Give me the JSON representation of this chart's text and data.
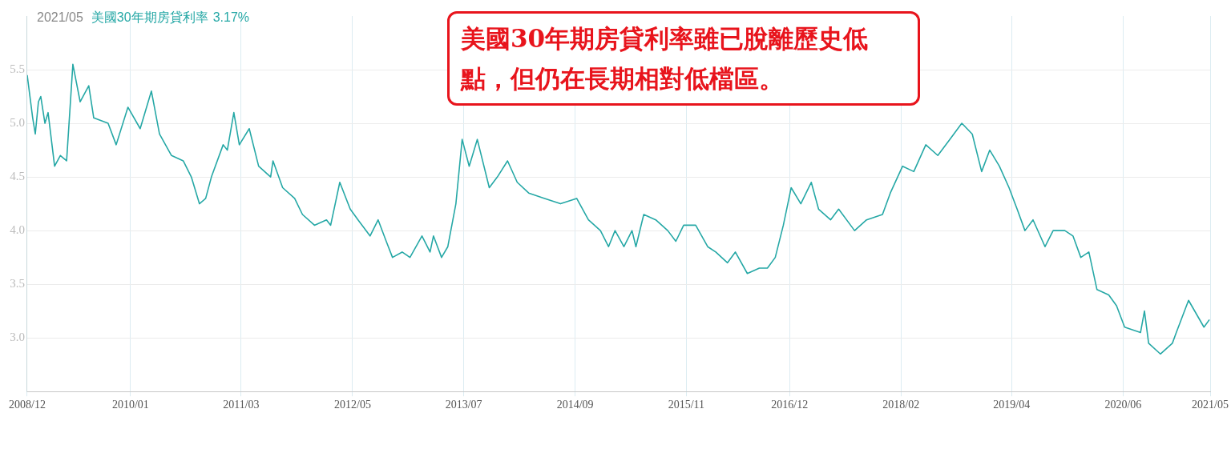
{
  "chart_data": {
    "type": "line",
    "title": "2021/05",
    "annotations": [
      "3.17%",
      "美國30年期房貸利率雖已脫離歷史低點，但仍在長期相對低檔區。"
    ],
    "x": [
      "2008-12-01",
      "2008-12-22",
      "2009-01-01",
      "2009-01-13",
      "2009-01-22",
      "2009-02-07",
      "2009-02-19",
      "2009-03-16",
      "2009-04-07",
      "2009-05-01",
      "2009-05-25",
      "2009-06-22",
      "2009-07-25",
      "2009-08-13",
      "2009-10-07",
      "2009-11-07",
      "2009-12-22",
      "2010-02-07",
      "2010-03-22",
      "2010-04-22",
      "2010-06-07",
      "2010-07-22",
      "2010-08-22",
      "2010-09-22",
      "2010-10-16",
      "2010-11-07",
      "2010-12-22",
      "2011-01-07",
      "2011-02-01",
      "2011-02-22",
      "2011-04-01",
      "2011-05-07",
      "2011-06-22",
      "2011-07-01",
      "2011-08-07",
      "2011-09-22",
      "2011-10-22",
      "2011-12-07",
      "2012-01-22",
      "2012-02-07",
      "2012-03-13",
      "2012-04-22",
      "2012-05-22",
      "2012-07-07",
      "2012-08-07",
      "2012-09-07",
      "2012-10-01",
      "2012-11-07",
      "2012-12-07",
      "2013-01-22",
      "2013-02-22",
      "2013-03-07",
      "2013-04-07",
      "2013-05-01",
      "2013-06-01",
      "2013-06-25",
      "2013-07-22",
      "2013-08-22",
      "2013-10-07",
      "2013-11-07",
      "2013-12-16",
      "2014-01-22",
      "2014-03-07",
      "2014-05-07",
      "2014-07-07",
      "2014-09-07",
      "2014-10-22",
      "2014-12-07",
      "2015-01-07",
      "2015-02-01",
      "2015-03-07",
      "2015-04-07",
      "2015-04-22",
      "2015-05-22",
      "2015-07-07",
      "2015-08-22",
      "2015-09-22",
      "2015-10-22",
      "2015-12-07",
      "2016-01-22",
      "2016-02-22",
      "2016-04-07",
      "2016-05-07",
      "2016-06-22",
      "2016-08-07",
      "2016-09-07",
      "2016-10-07",
      "2016-11-07",
      "2016-12-07",
      "2017-01-13",
      "2017-02-22",
      "2017-03-22",
      "2017-05-07",
      "2017-06-07",
      "2017-08-07",
      "2017-09-22",
      "2017-11-22",
      "2017-12-22",
      "2018-02-07",
      "2018-03-22",
      "2018-05-07",
      "2018-06-22",
      "2018-08-07",
      "2018-09-22",
      "2018-11-01",
      "2018-12-07",
      "2019-01-07",
      "2019-02-13",
      "2019-03-22",
      "2019-04-22",
      "2019-05-22",
      "2019-06-22",
      "2019-08-07",
      "2019-09-07",
      "2019-10-22",
      "2019-11-22",
      "2019-12-22",
      "2020-01-22",
      "2020-02-22",
      "2020-04-07",
      "2020-05-07",
      "2020-06-07",
      "2020-08-07",
      "2020-08-22",
      "2020-09-07",
      "2020-10-22",
      "2020-12-07",
      "2020-12-22",
      "2021-02-07",
      "2021-04-07",
      "2021-04-28"
    ],
    "series": [
      {
        "name": "美國30年期房貸利率",
        "color": "#26a8a6",
        "values": [
          5.45,
          5.05,
          4.9,
          5.2,
          5.25,
          5.0,
          5.1,
          4.6,
          4.7,
          4.65,
          5.55,
          5.2,
          5.35,
          5.05,
          5.0,
          4.8,
          5.15,
          4.95,
          5.3,
          4.9,
          4.7,
          4.65,
          4.5,
          4.25,
          4.3,
          4.5,
          4.8,
          4.75,
          5.1,
          4.8,
          4.95,
          4.6,
          4.5,
          4.65,
          4.4,
          4.3,
          4.15,
          4.05,
          4.1,
          4.05,
          4.45,
          4.2,
          4.1,
          3.95,
          4.1,
          3.9,
          3.75,
          3.8,
          3.75,
          3.95,
          3.8,
          3.95,
          3.75,
          3.85,
          4.25,
          4.85,
          4.6,
          4.85,
          4.4,
          4.5,
          4.65,
          4.45,
          4.35,
          4.3,
          4.25,
          4.3,
          4.1,
          4.0,
          3.85,
          4.0,
          3.85,
          4.0,
          3.85,
          4.15,
          4.1,
          4.0,
          3.9,
          4.05,
          4.05,
          3.85,
          3.8,
          3.7,
          3.8,
          3.6,
          3.65,
          3.65,
          3.75,
          4.05,
          4.4,
          4.25,
          4.45,
          4.2,
          4.1,
          4.2,
          4.0,
          4.1,
          4.15,
          4.35,
          4.6,
          4.55,
          4.8,
          4.7,
          4.85,
          5.0,
          4.9,
          4.55,
          4.75,
          4.6,
          4.4,
          4.2,
          4.0,
          4.1,
          3.85,
          4.0,
          4.0,
          3.95,
          3.75,
          3.8,
          3.45,
          3.4,
          3.3,
          3.1,
          3.05,
          3.25,
          2.95,
          2.85,
          2.95,
          3.05,
          3.35,
          3.1,
          3.17
        ]
      }
    ],
    "xlim": [
      "2008-12-01",
      "2021-05-01"
    ],
    "xticks": [
      {
        "value": "2008-12",
        "label": "2008/12"
      },
      {
        "value": "2010-01",
        "label": "2010/01"
      },
      {
        "value": "2011-03",
        "label": "2011/03"
      },
      {
        "value": "2012-05",
        "label": "2012/05"
      },
      {
        "value": "2013-07",
        "label": "2013/07"
      },
      {
        "value": "2014-09",
        "label": "2014/09"
      },
      {
        "value": "2015-11",
        "label": "2015/11"
      },
      {
        "value": "2016-12",
        "label": "2016/12"
      },
      {
        "value": "2018-02",
        "label": "2018/02"
      },
      {
        "value": "2019-04",
        "label": "2019/04"
      },
      {
        "value": "2020-06",
        "label": "2020/06"
      },
      {
        "value": "2021-05",
        "label": "2021/05"
      }
    ],
    "ylim": [
      2.5,
      6.0
    ],
    "yticks": [
      {
        "value": 3,
        "label": "3.0"
      },
      {
        "value": 3.5,
        "label": "3.5"
      },
      {
        "value": 4,
        "label": "4.0"
      },
      {
        "value": 4.5,
        "label": "4.5"
      },
      {
        "value": 5,
        "label": "5.0"
      },
      {
        "value": 5.5,
        "label": "5.5"
      }
    ],
    "grid": true,
    "legend": "top left",
    "line_style": "solid",
    "marker": "none"
  }
}
